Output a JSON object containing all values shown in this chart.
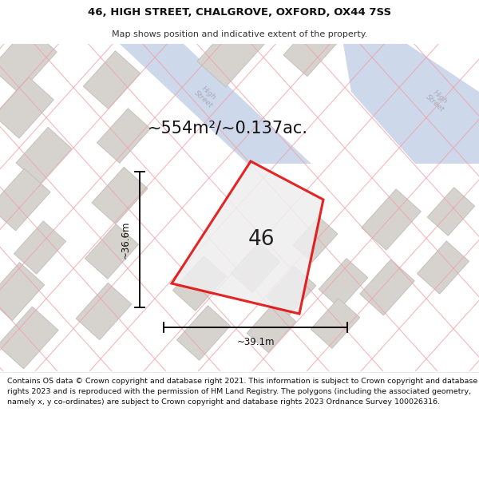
{
  "title_line1": "46, HIGH STREET, CHALGROVE, OXFORD, OX44 7SS",
  "title_line2": "Map shows position and indicative extent of the property.",
  "area_text": "~554m²/~0.137ac.",
  "property_number": "46",
  "width_label": "~39.1m",
  "height_label": "~36.6m",
  "footer_text": "Contains OS data © Crown copyright and database right 2021. This information is subject to Crown copyright and database rights 2023 and is reproduced with the permission of HM Land Registry. The polygons (including the associated geometry, namely x, y co-ordinates) are subject to Crown copyright and database rights 2023 Ordnance Survey 100026316.",
  "bg_color": "#f0eeec",
  "map_bg": "#ebebeb",
  "road_color": "#c8d4e8",
  "building_fc": "#d6d3ce",
  "building_ec": "#c0bdb8",
  "plot_line_color": "#e00000",
  "plot_fill_color": "#eeeeee",
  "road_label_color": "#aaaabc",
  "footer_bg": "#ffffff",
  "title_area_bg": "#ffffff",
  "pink_line": "#f0a0aa",
  "title_fontsize": 9.5,
  "subtitle_fontsize": 8.0,
  "area_fontsize": 15.0,
  "num_fontsize": 19.0,
  "dim_fontsize": 8.5,
  "footer_fontsize": 6.8
}
